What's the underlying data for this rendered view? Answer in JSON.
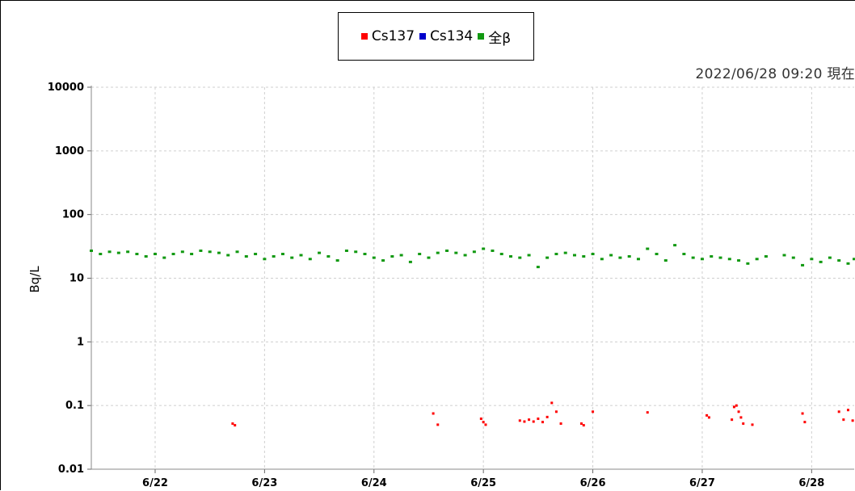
{
  "legend": {
    "items": [
      {
        "label": "Cs137",
        "color": "#ff0000"
      },
      {
        "label": "Cs134",
        "color": "#0000cc"
      },
      {
        "label": "全β",
        "color": "#119911"
      }
    ]
  },
  "timestamp": "2022/06/28 09:20 現在",
  "chart_data": {
    "type": "scatter",
    "title": "",
    "xlabel": "",
    "ylabel": "Bq/L",
    "y_scale": "log",
    "ylim": [
      0.01,
      10000
    ],
    "xlim": [
      "2022-06-21 10:00",
      "2022-06-28 09:20"
    ],
    "grid": true,
    "legend_position": "top-center",
    "y_ticks": [
      "0.01",
      "0.1",
      "1",
      "10",
      "100",
      "1000",
      "10000"
    ],
    "x_ticks": [
      "6/22",
      "6/23",
      "6/24",
      "6/25",
      "6/26",
      "6/27",
      "6/28"
    ],
    "series": [
      {
        "name": "全β",
        "color": "#119911",
        "points": [
          [
            "2022-06-21 10:00",
            27
          ],
          [
            "2022-06-21 12:00",
            24
          ],
          [
            "2022-06-21 14:00",
            26
          ],
          [
            "2022-06-21 16:00",
            25
          ],
          [
            "2022-06-21 18:00",
            26
          ],
          [
            "2022-06-21 20:00",
            24
          ],
          [
            "2022-06-21 22:00",
            22
          ],
          [
            "2022-06-22 00:00",
            24
          ],
          [
            "2022-06-22 02:00",
            21
          ],
          [
            "2022-06-22 04:00",
            24
          ],
          [
            "2022-06-22 06:00",
            26
          ],
          [
            "2022-06-22 08:00",
            24
          ],
          [
            "2022-06-22 10:00",
            27
          ],
          [
            "2022-06-22 12:00",
            26
          ],
          [
            "2022-06-22 14:00",
            25
          ],
          [
            "2022-06-22 16:00",
            23
          ],
          [
            "2022-06-22 18:00",
            26
          ],
          [
            "2022-06-22 20:00",
            22
          ],
          [
            "2022-06-22 22:00",
            24
          ],
          [
            "2022-06-23 00:00",
            20
          ],
          [
            "2022-06-23 02:00",
            22
          ],
          [
            "2022-06-23 04:00",
            24
          ],
          [
            "2022-06-23 06:00",
            21
          ],
          [
            "2022-06-23 08:00",
            23
          ],
          [
            "2022-06-23 10:00",
            20
          ],
          [
            "2022-06-23 12:00",
            25
          ],
          [
            "2022-06-23 14:00",
            22
          ],
          [
            "2022-06-23 16:00",
            19
          ],
          [
            "2022-06-23 18:00",
            27
          ],
          [
            "2022-06-23 20:00",
            26
          ],
          [
            "2022-06-23 22:00",
            24
          ],
          [
            "2022-06-24 00:00",
            21
          ],
          [
            "2022-06-24 02:00",
            19
          ],
          [
            "2022-06-24 04:00",
            22
          ],
          [
            "2022-06-24 06:00",
            23
          ],
          [
            "2022-06-24 08:00",
            18
          ],
          [
            "2022-06-24 10:00",
            24
          ],
          [
            "2022-06-24 12:00",
            21
          ],
          [
            "2022-06-24 14:00",
            25
          ],
          [
            "2022-06-24 16:00",
            27
          ],
          [
            "2022-06-24 18:00",
            25
          ],
          [
            "2022-06-24 20:00",
            23
          ],
          [
            "2022-06-24 22:00",
            26
          ],
          [
            "2022-06-25 00:00",
            29
          ],
          [
            "2022-06-25 02:00",
            27
          ],
          [
            "2022-06-25 04:00",
            24
          ],
          [
            "2022-06-25 06:00",
            22
          ],
          [
            "2022-06-25 08:00",
            21
          ],
          [
            "2022-06-25 10:00",
            23
          ],
          [
            "2022-06-25 12:00",
            15
          ],
          [
            "2022-06-25 14:00",
            21
          ],
          [
            "2022-06-25 16:00",
            24
          ],
          [
            "2022-06-25 18:00",
            25
          ],
          [
            "2022-06-25 20:00",
            23
          ],
          [
            "2022-06-25 22:00",
            22
          ],
          [
            "2022-06-26 00:00",
            24
          ],
          [
            "2022-06-26 02:00",
            20
          ],
          [
            "2022-06-26 04:00",
            23
          ],
          [
            "2022-06-26 06:00",
            21
          ],
          [
            "2022-06-26 08:00",
            22
          ],
          [
            "2022-06-26 10:00",
            20
          ],
          [
            "2022-06-26 12:00",
            29
          ],
          [
            "2022-06-26 14:00",
            24
          ],
          [
            "2022-06-26 16:00",
            19
          ],
          [
            "2022-06-26 18:00",
            33
          ],
          [
            "2022-06-26 20:00",
            24
          ],
          [
            "2022-06-26 22:00",
            21
          ],
          [
            "2022-06-27 00:00",
            20
          ],
          [
            "2022-06-27 02:00",
            22
          ],
          [
            "2022-06-27 04:00",
            21
          ],
          [
            "2022-06-27 06:00",
            20
          ],
          [
            "2022-06-27 08:00",
            19
          ],
          [
            "2022-06-27 10:00",
            17
          ],
          [
            "2022-06-27 12:00",
            20
          ],
          [
            "2022-06-27 14:00",
            22
          ],
          [
            "2022-06-27 18:00",
            23
          ],
          [
            "2022-06-27 20:00",
            21
          ],
          [
            "2022-06-27 22:00",
            16
          ],
          [
            "2022-06-28 00:00",
            20
          ],
          [
            "2022-06-28 02:00",
            18
          ],
          [
            "2022-06-28 04:00",
            21
          ],
          [
            "2022-06-28 06:00",
            19
          ],
          [
            "2022-06-28 08:00",
            17
          ],
          [
            "2022-06-28 09:20",
            20
          ]
        ]
      },
      {
        "name": "Cs137",
        "color": "#ff0000",
        "points": [
          [
            "2022-06-22 17:00",
            0.052
          ],
          [
            "2022-06-22 17:30",
            0.049
          ],
          [
            "2022-06-24 13:00",
            0.075
          ],
          [
            "2022-06-24 14:00",
            0.05
          ],
          [
            "2022-06-24 23:30",
            0.062
          ],
          [
            "2022-06-25 00:00",
            0.055
          ],
          [
            "2022-06-25 00:30",
            0.05
          ],
          [
            "2022-06-25 08:00",
            0.058
          ],
          [
            "2022-06-25 09:00",
            0.056
          ],
          [
            "2022-06-25 10:00",
            0.06
          ],
          [
            "2022-06-25 11:00",
            0.056
          ],
          [
            "2022-06-25 12:00",
            0.062
          ],
          [
            "2022-06-25 13:00",
            0.055
          ],
          [
            "2022-06-25 14:00",
            0.066
          ],
          [
            "2022-06-25 15:00",
            0.11
          ],
          [
            "2022-06-25 16:00",
            0.08
          ],
          [
            "2022-06-25 17:00",
            0.052
          ],
          [
            "2022-06-25 21:30",
            0.052
          ],
          [
            "2022-06-25 22:00",
            0.049
          ],
          [
            "2022-06-26 00:00",
            0.08
          ],
          [
            "2022-06-26 12:00",
            0.078
          ],
          [
            "2022-06-27 01:00",
            0.07
          ],
          [
            "2022-06-27 01:30",
            0.065
          ],
          [
            "2022-06-27 06:30",
            0.06
          ],
          [
            "2022-06-27 07:00",
            0.095
          ],
          [
            "2022-06-27 07:30",
            0.1
          ],
          [
            "2022-06-27 08:00",
            0.08
          ],
          [
            "2022-06-27 08:30",
            0.065
          ],
          [
            "2022-06-27 09:00",
            0.052
          ],
          [
            "2022-06-27 11:00",
            0.05
          ],
          [
            "2022-06-27 22:00",
            0.075
          ],
          [
            "2022-06-27 22:30",
            0.055
          ],
          [
            "2022-06-28 06:00",
            0.08
          ],
          [
            "2022-06-28 07:00",
            0.06
          ],
          [
            "2022-06-28 08:00",
            0.085
          ],
          [
            "2022-06-28 09:00",
            0.058
          ]
        ]
      },
      {
        "name": "Cs134",
        "color": "#0000cc",
        "points": []
      }
    ]
  }
}
